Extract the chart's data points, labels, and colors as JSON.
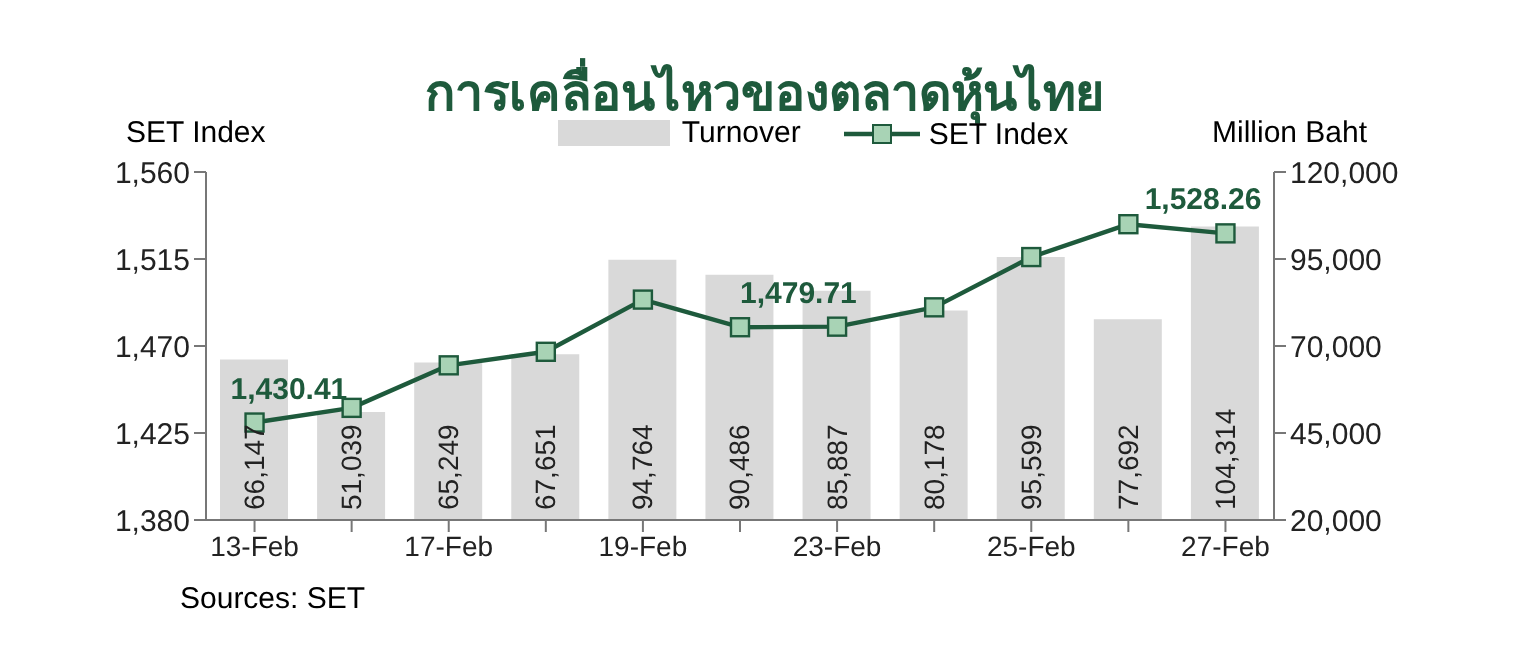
{
  "chart_data": {
    "type": "bar",
    "title": "การเคลื่อนไหวของตลาดหุ้นไทย",
    "ylabel": "SET Index",
    "y2label": "Million Baht",
    "categories": [
      "13-Feb",
      null,
      "17-Feb",
      null,
      "19-Feb",
      null,
      "23-Feb",
      null,
      "25-Feb",
      null,
      "27-Feb"
    ],
    "series": [
      {
        "name": "Turnover",
        "axis": "y2",
        "color": "#d9d9d9",
        "values": [
          66147,
          51039,
          65249,
          67651,
          94764,
          90486,
          85887,
          80178,
          95599,
          77692,
          104314
        ],
        "value_labels": [
          "66,147",
          "51,039",
          "65,249",
          "67,651",
          "94,764",
          "90,486",
          "85,887",
          "80,178",
          "95,599",
          "77,692",
          "104,314"
        ]
      },
      {
        "name": "SET Index",
        "type": "line",
        "color": "#1e5a3c",
        "marker": "square",
        "values": [
          1430.41,
          1438,
          1460,
          1467,
          1494,
          1479.71,
          1480,
          1490,
          1516,
          1533,
          1528.26
        ],
        "value_labels": [
          "1,430.41",
          null,
          null,
          null,
          null,
          "1,479.71",
          null,
          null,
          null,
          null,
          "1,528.26"
        ]
      }
    ],
    "ylim": [
      1380,
      1560
    ],
    "yticks": [
      {
        "value": 1380,
        "label": "1,380"
      },
      {
        "value": 1425,
        "label": "1,425"
      },
      {
        "value": 1470,
        "label": "1,470"
      },
      {
        "value": 1515,
        "label": "1,515"
      },
      {
        "value": 1560,
        "label": "1,560"
      }
    ],
    "y2lim": [
      20000,
      120000
    ],
    "y2ticks": [
      {
        "value": 20000,
        "label": "20,000"
      },
      {
        "value": 45000,
        "label": "45,000"
      },
      {
        "value": 70000,
        "label": "70,000"
      },
      {
        "value": 95000,
        "label": "95,000"
      },
      {
        "value": 120000,
        "label": "120,000"
      }
    ],
    "legend": "top",
    "grid": false,
    "annotations": [
      "Sources: SET"
    ]
  }
}
